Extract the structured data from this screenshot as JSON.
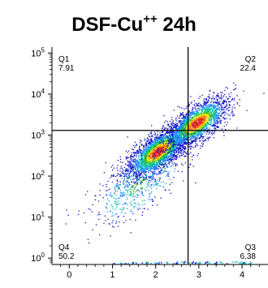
{
  "chart_data": {
    "type": "scatter",
    "title": {
      "main": "DSF-Cu",
      "superscript": "++",
      "suffix": " 24h"
    },
    "xlabel": "",
    "ylabel": "",
    "x_scale": "linear",
    "y_scale": "log",
    "xlim": [
      -0.4,
      4.6
    ],
    "ylim": [
      0.7,
      140000
    ],
    "x_ticks": [
      0,
      1,
      2,
      3,
      4
    ],
    "x_tick_labels": [
      "0",
      "1",
      "2",
      "3",
      "4"
    ],
    "y_ticks": [
      1,
      10,
      100,
      1000,
      10000,
      100000
    ],
    "y_tick_labels": [
      {
        "base": "10",
        "exp": "0"
      },
      {
        "base": "10",
        "exp": "1"
      },
      {
        "base": "10",
        "exp": "2"
      },
      {
        "base": "10",
        "exp": "3"
      },
      {
        "base": "10",
        "exp": "4"
      },
      {
        "base": "10",
        "exp": "5"
      }
    ],
    "gates": {
      "x": 2.75,
      "y": 1300
    },
    "quadrants": [
      {
        "name": "Q1",
        "value": "7.91",
        "position": "top-left"
      },
      {
        "name": "Q2",
        "value": "22.4",
        "position": "top-right"
      },
      {
        "name": "Q3",
        "value": "6.38",
        "position": "bottom-right"
      },
      {
        "name": "Q4",
        "value": "50.2",
        "position": "bottom-left"
      }
    ],
    "populations": [
      {
        "center": [
          2.05,
          400
        ],
        "weight": 0.52
      },
      {
        "center": [
          2.95,
          2000
        ],
        "weight": 0.38
      },
      {
        "center": [
          1.6,
          60
        ],
        "weight": 0.1
      }
    ],
    "density_colors": [
      "#1010c0",
      "#1e90ff",
      "#00c0a0",
      "#30c030",
      "#e0e000",
      "#ff8000",
      "#e02020"
    ],
    "grid": false,
    "legend": "none"
  }
}
